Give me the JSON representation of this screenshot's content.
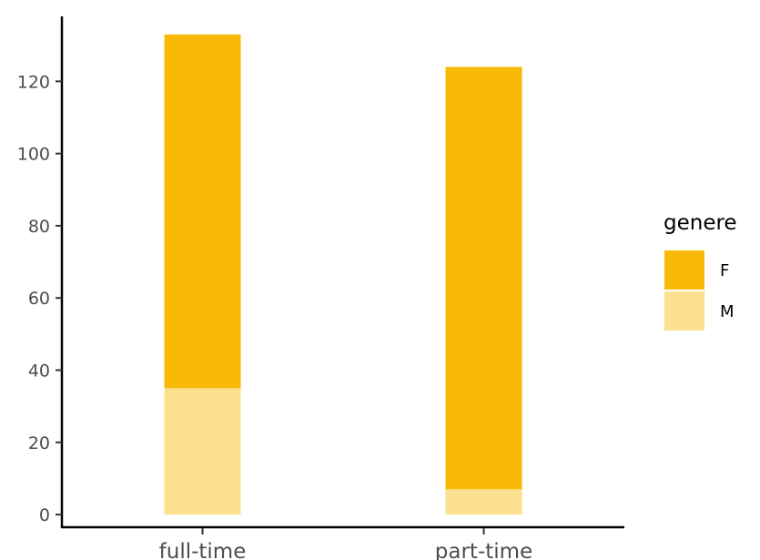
{
  "chart_data": {
    "type": "bar",
    "stacked": true,
    "title": "",
    "xlabel": "",
    "ylabel": "",
    "categories": [
      "full-time",
      "part-time"
    ],
    "series": [
      {
        "name": "F",
        "values": [
          98,
          117
        ],
        "color": "#F9B908"
      },
      {
        "name": "M",
        "values": [
          35,
          7
        ],
        "color": "#FBE08F"
      }
    ],
    "y_ticks": [
      "0",
      "20",
      "40",
      "60",
      "80",
      "100",
      "120"
    ],
    "ylim": [
      -3.5,
      138
    ],
    "grid": false,
    "legend": {
      "title": "genere",
      "position": "right"
    }
  }
}
